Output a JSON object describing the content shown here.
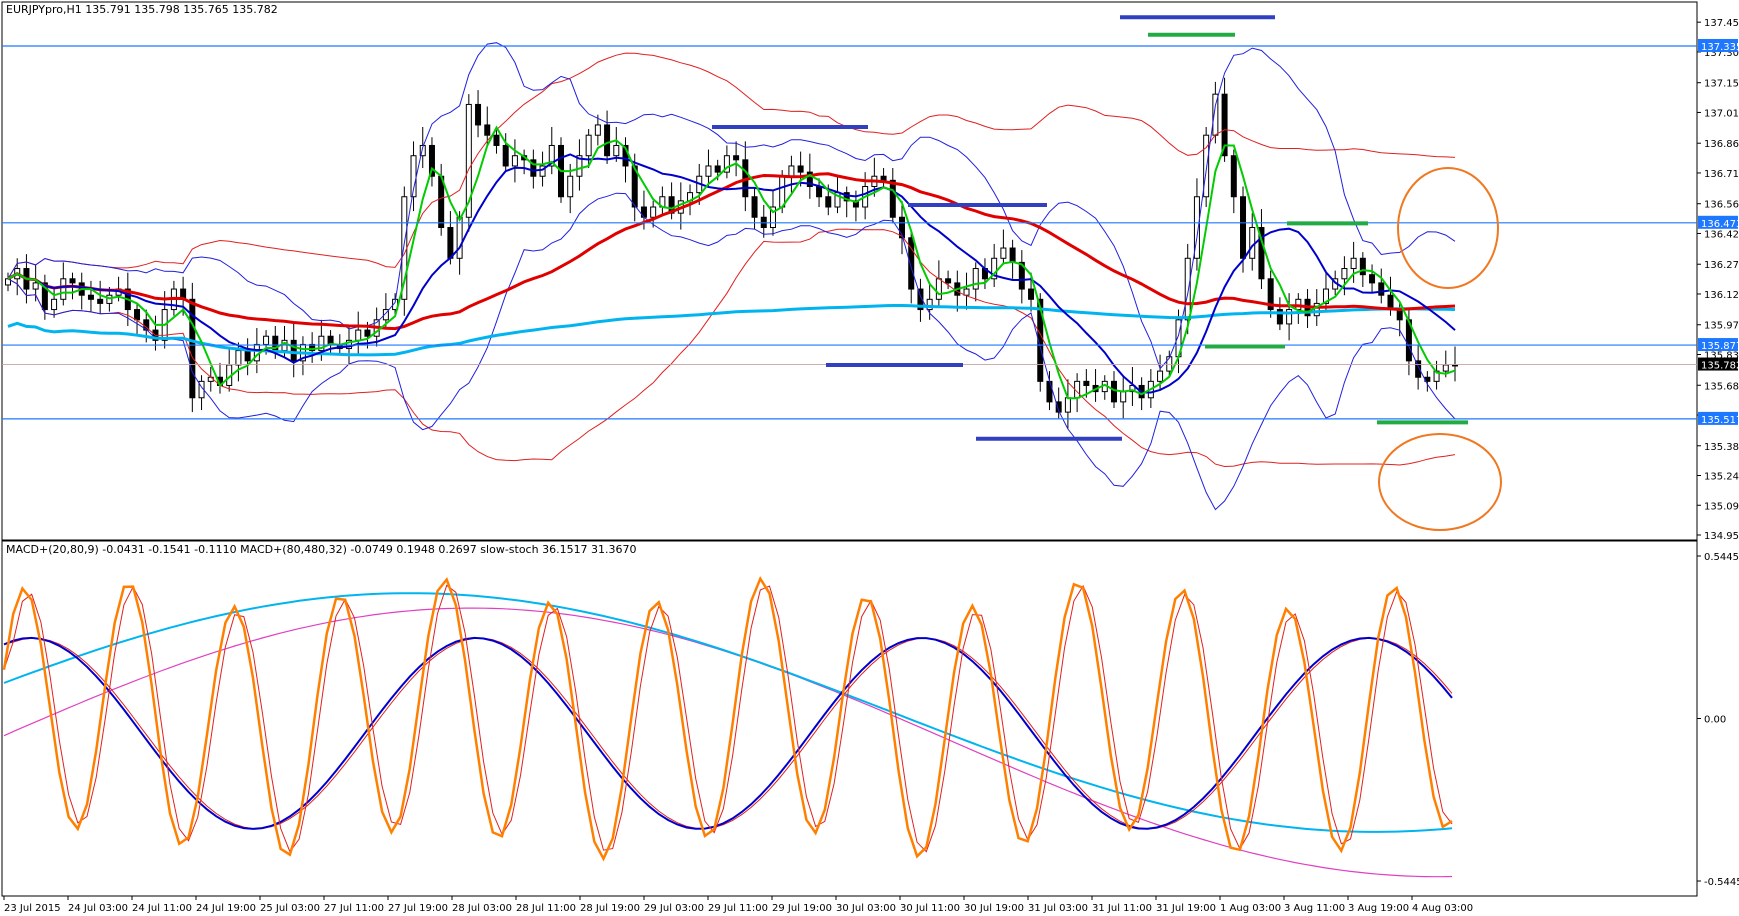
{
  "main_label": "EURJPYpro,H1  135.791 135.798 135.765 135.782",
  "sub_label": "MACD+(20,80,9) -0.0431 -0.1541 -0.1110  MACD+(80,480,32) -0.0749 0.1948 0.2697  slow-stoch 36.1517 31.3670",
  "chart_data": [
    {
      "type": "candlestick",
      "symbol": "EURJPYpro",
      "timeframe": "H1",
      "ohlc_header": {
        "open": 135.791,
        "high": 135.798,
        "low": 135.765,
        "close": 135.782
      },
      "ylim": [
        134.951,
        137.525
      ],
      "y_ticks": [
        "137.451",
        "137.306",
        "137.156",
        "137.011",
        "136.861",
        "136.716",
        "136.566",
        "136.421",
        "136.271",
        "136.126",
        "135.976",
        "135.831",
        "135.681",
        "135.536",
        "135.386",
        "135.241",
        "135.096",
        "134.951"
      ],
      "x_ticks": [
        "23 Jul 2015",
        "24 Jul 03:00",
        "24 Jul 11:00",
        "24 Jul 19:00",
        "25 Jul 03:00",
        "27 Jul 11:00",
        "27 Jul 19:00",
        "28 Jul 03:00",
        "28 Jul 11:00",
        "28 Jul 19:00",
        "29 Jul 03:00",
        "29 Jul 11:00",
        "29 Jul 19:00",
        "30 Jul 03:00",
        "30 Jul 11:00",
        "30 Jul 19:00",
        "31 Jul 03:00",
        "31 Jul 11:00",
        "31 Jul 19:00",
        "1 Aug 03:00",
        "3 Aug 11:00",
        "3 Aug 19:00",
        "4 Aug 03:00"
      ],
      "horizontal_levels": [
        {
          "label": "137.335",
          "value": 137.335
        },
        {
          "label": "136.473",
          "value": 136.473
        },
        {
          "label": "135.877",
          "value": 135.877
        },
        {
          "label": "135.517",
          "value": 135.517
        }
      ],
      "current_price": {
        "label": "135.782",
        "value": 135.782
      },
      "close_series": [
        136.2,
        136.25,
        136.15,
        136.18,
        136.05,
        136.1,
        136.2,
        136.18,
        136.12,
        136.1,
        136.08,
        136.12,
        136.15,
        136.05,
        136.0,
        135.95,
        135.9,
        136.05,
        136.15,
        136.1,
        135.62,
        135.7,
        135.72,
        135.68,
        135.78,
        135.85,
        135.8,
        135.88,
        135.92,
        135.85,
        135.9,
        135.8,
        135.88,
        135.85,
        135.92,
        135.88,
        135.86,
        135.9,
        135.95,
        135.92,
        136.0,
        136.05,
        136.1,
        136.6,
        136.8,
        136.85,
        136.7,
        136.45,
        136.3,
        136.5,
        137.05,
        136.95,
        136.9,
        136.85,
        136.75,
        136.8,
        136.78,
        136.7,
        136.75,
        136.85,
        136.6,
        136.7,
        136.8,
        136.9,
        136.95,
        136.8,
        136.85,
        136.75,
        136.55,
        136.5,
        136.55,
        136.6,
        136.52,
        136.58,
        136.62,
        136.7,
        136.75,
        136.72,
        136.8,
        136.78,
        136.6,
        136.5,
        136.45,
        136.55,
        136.7,
        136.75,
        136.72,
        136.65,
        136.6,
        136.55,
        136.62,
        136.58,
        136.55,
        136.65,
        136.7,
        136.68,
        136.5,
        136.4,
        136.15,
        136.05,
        136.1,
        136.2,
        136.18,
        136.12,
        136.15,
        136.25,
        136.2,
        136.3,
        136.35,
        136.28,
        136.15,
        136.1,
        135.7,
        135.6,
        135.55,
        135.62,
        135.7,
        135.68,
        135.65,
        135.7,
        135.6,
        135.65,
        135.68,
        135.62,
        135.7,
        135.75,
        135.82,
        136.0,
        136.3,
        136.6,
        136.9,
        137.1,
        136.8,
        136.6,
        136.3,
        136.45,
        136.2,
        136.05,
        135.98,
        136.05,
        136.1,
        136.02,
        136.08,
        136.15,
        136.2,
        136.25,
        136.3,
        136.22,
        136.18,
        136.12,
        136.05,
        136.0,
        135.8,
        135.72,
        135.7,
        135.75,
        135.78,
        135.78
      ]
    },
    {
      "type": "line",
      "indicator": "MACD / slow-stoch",
      "ylim": [
        -0.5445,
        0.5445
      ],
      "y_ticks": [
        "0.5445",
        "0.00",
        "-0.5445"
      ]
    }
  ],
  "colors": {
    "candle": "#000000",
    "bollinger_blue": "#2020e0",
    "envelope_red": "#e02020",
    "ma_fast": "#00cc00",
    "ma_mid": "#0000cc",
    "ma_red": "#e00000",
    "ma_cyan": "#00b4f0",
    "level_line": "#1e78ff",
    "annot_blue": "#3040c0",
    "annot_green": "#22aa44",
    "circle": "#f07820",
    "stoch": "#ff8000",
    "magenta": "#e040c0"
  }
}
